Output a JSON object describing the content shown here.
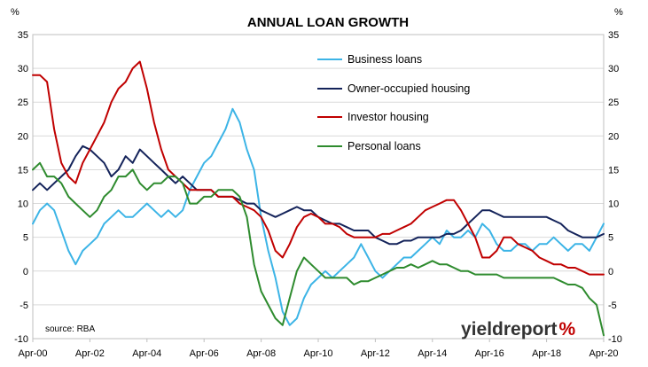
{
  "chart_data": {
    "type": "line",
    "title": "ANNUAL LOAN GROWTH",
    "y_unit_left": "%",
    "y_unit_right": "%",
    "ylim": [
      -10,
      35
    ],
    "y_ticks": [
      35,
      30,
      25,
      20,
      15,
      10,
      5,
      0,
      -5,
      -10
    ],
    "y_tick_labels": [
      "35",
      "30",
      "25",
      "20",
      "15",
      "10",
      "5",
      "0",
      "-5",
      "-10"
    ],
    "y_tick_labels_right": [
      "35",
      "30",
      "25",
      "20",
      "15",
      "10",
      "5",
      "0",
      "-5",
      "-10"
    ],
    "xlim": [
      2000.25,
      2020.25
    ],
    "x_tick_labels": [
      "Apr-00",
      "Apr-02",
      "Apr-04",
      "Apr-06",
      "Apr-08",
      "Apr-10",
      "Apr-12",
      "Apr-14",
      "Apr-16",
      "Apr-18",
      "Apr-20"
    ],
    "x_tick_values": [
      2000.25,
      2002.25,
      2004.25,
      2006.25,
      2008.25,
      2010.25,
      2012.25,
      2014.25,
      2016.25,
      2018.25,
      2020.25
    ],
    "grid": true,
    "legend_position": "top-center",
    "source": "source: RBA",
    "brand": {
      "text_main": "yieldreport",
      "text_symbol": "%",
      "color_main": "#333333",
      "color_symbol": "#c00000"
    },
    "series": [
      {
        "name": "Business loans",
        "color": "#3cb4e6",
        "x": [
          2000.25,
          2000.5,
          2000.75,
          2001.0,
          2001.25,
          2001.5,
          2001.75,
          2002.0,
          2002.25,
          2002.5,
          2002.75,
          2003.0,
          2003.25,
          2003.5,
          2003.75,
          2004.0,
          2004.25,
          2004.5,
          2004.75,
          2005.0,
          2005.25,
          2005.5,
          2005.75,
          2006.0,
          2006.25,
          2006.5,
          2006.75,
          2007.0,
          2007.25,
          2007.5,
          2007.75,
          2008.0,
          2008.25,
          2008.5,
          2008.75,
          2009.0,
          2009.25,
          2009.5,
          2009.75,
          2010.0,
          2010.25,
          2010.5,
          2010.75,
          2011.0,
          2011.25,
          2011.5,
          2011.75,
          2012.0,
          2012.25,
          2012.5,
          2012.75,
          2013.0,
          2013.25,
          2013.5,
          2013.75,
          2014.0,
          2014.25,
          2014.5,
          2014.75,
          2015.0,
          2015.25,
          2015.5,
          2015.75,
          2016.0,
          2016.25,
          2016.5,
          2016.75,
          2017.0,
          2017.25,
          2017.5,
          2017.75,
          2018.0,
          2018.25,
          2018.5,
          2018.75,
          2019.0,
          2019.25,
          2019.5,
          2019.75,
          2020.0,
          2020.25
        ],
        "y": [
          7,
          9,
          10,
          9,
          6,
          3,
          1,
          3,
          4,
          5,
          7,
          8,
          9,
          8,
          8,
          9,
          10,
          9,
          8,
          9,
          8,
          9,
          12,
          14,
          16,
          17,
          19,
          21,
          24,
          22,
          18,
          15,
          8,
          3,
          -1,
          -6,
          -8,
          -7,
          -4,
          -2,
          -1,
          0,
          -1,
          0,
          1,
          2,
          4,
          2,
          0,
          -1,
          0,
          1,
          2,
          2,
          3,
          4,
          5,
          4,
          6,
          5,
          5,
          6,
          5,
          7,
          6,
          4,
          3,
          3,
          4,
          4,
          3,
          4,
          4,
          5,
          4,
          3,
          4,
          4,
          3,
          5,
          7
        ]
      },
      {
        "name": "Owner-occupied housing",
        "color": "#14235a",
        "x": [
          2000.25,
          2000.5,
          2000.75,
          2001.0,
          2001.25,
          2001.5,
          2001.75,
          2002.0,
          2002.25,
          2002.5,
          2002.75,
          2003.0,
          2003.25,
          2003.5,
          2003.75,
          2004.0,
          2004.25,
          2004.5,
          2004.75,
          2005.0,
          2005.25,
          2005.5,
          2005.75,
          2006.0,
          2006.25,
          2006.5,
          2006.75,
          2007.0,
          2007.25,
          2007.5,
          2007.75,
          2008.0,
          2008.25,
          2008.5,
          2008.75,
          2009.0,
          2009.25,
          2009.5,
          2009.75,
          2010.0,
          2010.25,
          2010.5,
          2010.75,
          2011.0,
          2011.25,
          2011.5,
          2011.75,
          2012.0,
          2012.25,
          2012.5,
          2012.75,
          2013.0,
          2013.25,
          2013.5,
          2013.75,
          2014.0,
          2014.25,
          2014.5,
          2014.75,
          2015.0,
          2015.25,
          2015.5,
          2015.75,
          2016.0,
          2016.25,
          2016.5,
          2016.75,
          2017.0,
          2017.25,
          2017.5,
          2017.75,
          2018.0,
          2018.25,
          2018.5,
          2018.75,
          2019.0,
          2019.25,
          2019.5,
          2019.75,
          2020.0,
          2020.25
        ],
        "y": [
          12,
          13,
          12,
          13,
          14,
          15,
          17,
          18.5,
          18,
          17,
          16,
          14,
          15,
          17,
          16,
          18,
          17,
          16,
          15,
          14,
          13,
          14,
          13,
          12,
          12,
          12,
          11,
          11,
          11,
          10.5,
          10,
          10,
          9,
          8.5,
          8,
          8.5,
          9,
          9.5,
          9,
          9,
          8,
          7.5,
          7,
          7,
          6.5,
          6,
          6,
          6,
          5,
          4.5,
          4,
          4,
          4.5,
          4.5,
          5,
          5,
          5,
          5,
          5.5,
          5.5,
          6,
          7,
          8,
          9,
          9,
          8.5,
          8,
          8,
          8,
          8,
          8,
          8,
          8,
          7.5,
          7,
          6,
          5.5,
          5,
          5,
          5,
          5.5
        ]
      },
      {
        "name": "Investor housing",
        "color": "#c00000",
        "x": [
          2000.25,
          2000.5,
          2000.75,
          2001.0,
          2001.25,
          2001.5,
          2001.75,
          2002.0,
          2002.25,
          2002.5,
          2002.75,
          2003.0,
          2003.25,
          2003.5,
          2003.75,
          2004.0,
          2004.25,
          2004.5,
          2004.75,
          2005.0,
          2005.25,
          2005.5,
          2005.75,
          2006.0,
          2006.25,
          2006.5,
          2006.75,
          2007.0,
          2007.25,
          2007.5,
          2007.75,
          2008.0,
          2008.25,
          2008.5,
          2008.75,
          2009.0,
          2009.25,
          2009.5,
          2009.75,
          2010.0,
          2010.25,
          2010.5,
          2010.75,
          2011.0,
          2011.25,
          2011.5,
          2011.75,
          2012.0,
          2012.25,
          2012.5,
          2012.75,
          2013.0,
          2013.25,
          2013.5,
          2013.75,
          2014.0,
          2014.25,
          2014.5,
          2014.75,
          2015.0,
          2015.25,
          2015.5,
          2015.75,
          2016.0,
          2016.25,
          2016.5,
          2016.75,
          2017.0,
          2017.25,
          2017.5,
          2017.75,
          2018.0,
          2018.25,
          2018.5,
          2018.75,
          2019.0,
          2019.25,
          2019.5,
          2019.75,
          2020.0,
          2020.25
        ],
        "y": [
          29,
          29,
          28,
          21,
          16,
          14,
          13,
          16,
          18,
          20,
          22,
          25,
          27,
          28,
          30,
          31,
          27,
          22,
          18,
          15,
          14,
          13,
          12,
          12,
          12,
          12,
          11,
          11,
          11,
          10,
          9.5,
          9,
          8,
          6,
          3,
          2,
          4,
          6.5,
          8,
          8.5,
          8,
          7,
          7,
          6.5,
          5.5,
          5,
          5,
          5,
          5,
          5.5,
          5.5,
          6,
          6.5,
          7,
          8,
          9,
          9.5,
          10,
          10.5,
          10.5,
          9,
          7,
          5,
          2,
          2,
          3,
          5,
          5,
          4,
          3.5,
          3,
          2,
          1.5,
          1,
          1,
          0.5,
          0.5,
          0,
          -0.5,
          -0.5,
          -0.5
        ]
      },
      {
        "name": "Personal loans",
        "color": "#2e8b2e",
        "x": [
          2000.25,
          2000.5,
          2000.75,
          2001.0,
          2001.25,
          2001.5,
          2001.75,
          2002.0,
          2002.25,
          2002.5,
          2002.75,
          2003.0,
          2003.25,
          2003.5,
          2003.75,
          2004.0,
          2004.25,
          2004.5,
          2004.75,
          2005.0,
          2005.25,
          2005.5,
          2005.75,
          2006.0,
          2006.25,
          2006.5,
          2006.75,
          2007.0,
          2007.25,
          2007.5,
          2007.75,
          2008.0,
          2008.25,
          2008.5,
          2008.75,
          2009.0,
          2009.25,
          2009.5,
          2009.75,
          2010.0,
          2010.25,
          2010.5,
          2010.75,
          2011.0,
          2011.25,
          2011.5,
          2011.75,
          2012.0,
          2012.25,
          2012.5,
          2012.75,
          2013.0,
          2013.25,
          2013.5,
          2013.75,
          2014.0,
          2014.25,
          2014.5,
          2014.75,
          2015.0,
          2015.25,
          2015.5,
          2015.75,
          2016.0,
          2016.25,
          2016.5,
          2016.75,
          2017.0,
          2017.25,
          2017.5,
          2017.75,
          2018.0,
          2018.25,
          2018.5,
          2018.75,
          2019.0,
          2019.25,
          2019.5,
          2019.75,
          2020.0,
          2020.25
        ],
        "y": [
          15,
          16,
          14,
          14,
          13,
          11,
          10,
          9,
          8,
          9,
          11,
          12,
          14,
          14,
          15,
          13,
          12,
          13,
          13,
          14,
          14,
          13,
          10,
          10,
          11,
          11,
          12,
          12,
          12,
          11,
          8,
          1,
          -3,
          -5,
          -7,
          -8,
          -4,
          0,
          2,
          1,
          0,
          -1,
          -1,
          -1,
          -1,
          -2,
          -1.5,
          -1.5,
          -1,
          -0.5,
          0,
          0.5,
          0.5,
          1,
          0.5,
          1,
          1.5,
          1,
          1,
          0.5,
          0,
          0,
          -0.5,
          -0.5,
          -0.5,
          -0.5,
          -1,
          -1,
          -1,
          -1,
          -1,
          -1,
          -1,
          -1,
          -1.5,
          -2,
          -2,
          -2.5,
          -4,
          -5,
          -9.5
        ]
      }
    ]
  }
}
